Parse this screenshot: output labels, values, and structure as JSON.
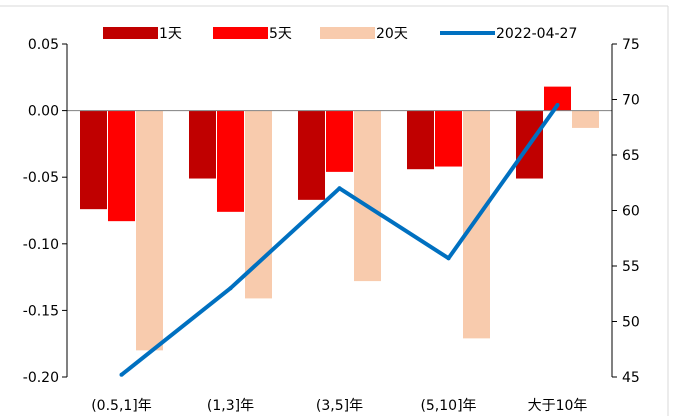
{
  "chart_data": {
    "type": "bar+line",
    "categories": [
      "(0.5,1]年",
      "(1,3]年",
      "(3,5]年",
      "(5,10]年",
      "大于10年"
    ],
    "series": [
      {
        "name": "1天",
        "type": "bar",
        "axis": "left",
        "color": "#C00000",
        "values": [
          -0.074,
          -0.051,
          -0.067,
          -0.044,
          -0.051
        ]
      },
      {
        "name": "5天",
        "type": "bar",
        "axis": "left",
        "color": "#FF0000",
        "values": [
          -0.083,
          -0.076,
          -0.046,
          -0.042,
          0.018
        ]
      },
      {
        "name": "20天",
        "type": "bar",
        "axis": "left",
        "color": "#F8CBAD",
        "values": [
          -0.18,
          -0.141,
          -0.128,
          -0.171,
          -0.013
        ]
      },
      {
        "name": "2022-04-27",
        "type": "line",
        "axis": "right",
        "color": "#0070C0",
        "values": [
          45.2,
          53.0,
          62.0,
          55.7,
          69.5
        ]
      }
    ],
    "y_left": {
      "min": -0.2,
      "max": 0.05,
      "ticks": [
        0.05,
        0.0,
        -0.05,
        -0.1,
        -0.15,
        -0.2
      ],
      "tick_labels": [
        "0.05",
        "0.00",
        "-0.05",
        "-0.10",
        "-0.15",
        "-0.20"
      ]
    },
    "y_right": {
      "min": 45,
      "max": 75,
      "ticks": [
        75,
        70,
        65,
        60,
        55,
        50,
        45
      ],
      "tick_labels": [
        "75",
        "70",
        "65",
        "60",
        "55",
        "50",
        "45"
      ]
    },
    "legend_position": "top",
    "grid": false,
    "colors": {
      "axis": "#000000",
      "zero_line": "#808080",
      "frame": "#D9D9D9"
    }
  }
}
